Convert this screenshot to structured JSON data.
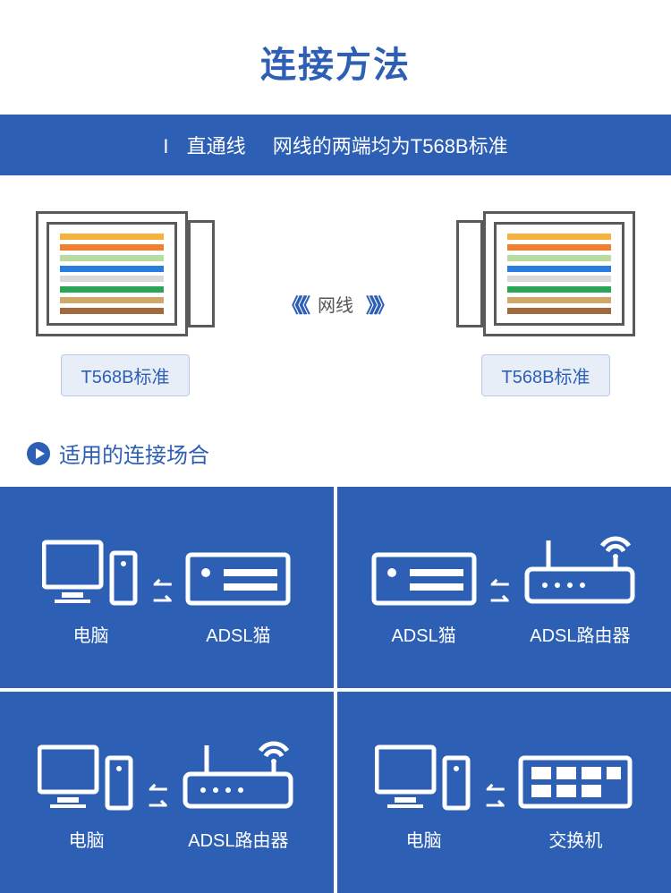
{
  "title": "连接方法",
  "subtitle": {
    "num": "I",
    "label1": "直通线",
    "label2": "网线的两端均为T568B标准"
  },
  "cable_label": "网线",
  "standard_label": "T568B标准",
  "section_head": "适用的连接场合",
  "wire_colors": [
    "#f7b23e",
    "#f07f2e",
    "#b9dca0",
    "#2a7de0",
    "#d9d9d9",
    "#2aa555",
    "#d0a86a",
    "#a06a3e"
  ],
  "arrow_left": "《《《",
  "arrow_right": "》》》",
  "scenes": [
    {
      "left": {
        "type": "pc",
        "label": "电脑"
      },
      "right": {
        "type": "modem",
        "label": "ADSL猫"
      }
    },
    {
      "left": {
        "type": "modem",
        "label": "ADSL猫"
      },
      "right": {
        "type": "router",
        "label": "ADSL路由器"
      }
    },
    {
      "left": {
        "type": "pc",
        "label": "电脑"
      },
      "right": {
        "type": "router",
        "label": "ADSL路由器"
      }
    },
    {
      "left": {
        "type": "pc",
        "label": "电脑"
      },
      "right": {
        "type": "switch",
        "label": "交换机"
      }
    }
  ],
  "colors": {
    "primary": "#2d5fb5",
    "white": "#ffffff",
    "std_bg": "#e8eef8",
    "std_border": "#b9c9e6",
    "connector_stroke": "#5a5a5a"
  }
}
